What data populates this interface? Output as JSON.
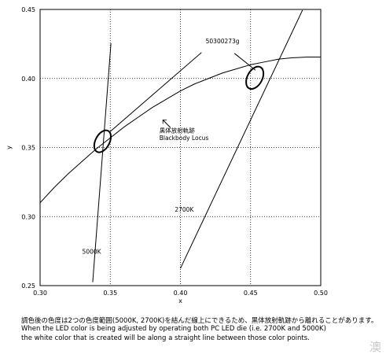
{
  "chart_data": {
    "type": "line",
    "xlabel": "x",
    "ylabel": "y",
    "xlim": [
      0.3,
      0.5
    ],
    "ylim": [
      0.25,
      0.45
    ],
    "x_ticks": [
      "0.30",
      "0.35",
      "0.40",
      "0.45",
      "0.50"
    ],
    "y_ticks": [
      "0.25",
      "0.30",
      "0.35",
      "0.40",
      "0.45"
    ],
    "grid": "dotted",
    "series": [
      {
        "name": "黒体放射軌跡 Blackbody Locus",
        "x": [
          0.3,
          0.31,
          0.32,
          0.33,
          0.34,
          0.35,
          0.36,
          0.37,
          0.38,
          0.39,
          0.4,
          0.41,
          0.42,
          0.43,
          0.44,
          0.45,
          0.46,
          0.47,
          0.48,
          0.49,
          0.5
        ],
        "y": [
          0.31,
          0.321,
          0.331,
          0.34,
          0.349,
          0.357,
          0.365,
          0.372,
          0.379,
          0.385,
          0.391,
          0.396,
          0.4,
          0.404,
          0.407,
          0.41,
          0.412,
          0.414,
          0.415,
          0.4155,
          0.4155
        ]
      },
      {
        "name": "5000K line",
        "x": [
          0.3375,
          0.3505
        ],
        "y": [
          0.2525,
          0.4255
        ]
      },
      {
        "name": "2700K line",
        "x": [
          0.4,
          0.487
        ],
        "y": [
          0.2625,
          0.4495
        ]
      }
    ],
    "ellipses": [
      {
        "name": "5000K bin",
        "cx": 0.3445,
        "cy": 0.3545,
        "rx": 0.005,
        "ry": 0.0086
      },
      {
        "name": "2700K bin",
        "cx": 0.453,
        "cy": 0.4005,
        "rx": 0.0053,
        "ry": 0.0087
      }
    ],
    "annotations": [
      {
        "text": "50300273g",
        "at": [
          0.418,
          0.4255
        ]
      },
      {
        "text": "黒体放射軌跡",
        "at": [
          0.385,
          0.3607
        ]
      },
      {
        "text": "Blackbody Locus",
        "at": [
          0.385,
          0.3555
        ]
      },
      {
        "text": "2700K",
        "at": [
          0.396,
          0.3035
        ]
      },
      {
        "text": "5000K",
        "at": [
          0.33,
          0.273
        ]
      }
    ],
    "annotation_arrows": [
      {
        "from": [
          0.415,
          0.4188
        ],
        "to": [
          0.3498,
          0.3614
        ]
      },
      {
        "from": [
          0.4385,
          0.4182
        ],
        "to": [
          0.4535,
          0.406
        ]
      },
      {
        "from": [
          0.393,
          0.3643
        ],
        "to": [
          0.3875,
          0.37
        ]
      }
    ],
    "colors": {
      "line": "#000000",
      "grid": "#000000",
      "axis": "#000000"
    }
  },
  "caption": {
    "jp": "調色後の色度は2つの色度範囲(5000K, 2700K)を結んだ線上にできるため、黒体放射軌跡から離れることがあります。",
    "en1": "When the LED color is being adjusted by operating both PC LED die (i.e. 2700K and 5000K)",
    "en2": "the white color that is created will be along a straight line between those color points."
  },
  "watermark": "澳"
}
